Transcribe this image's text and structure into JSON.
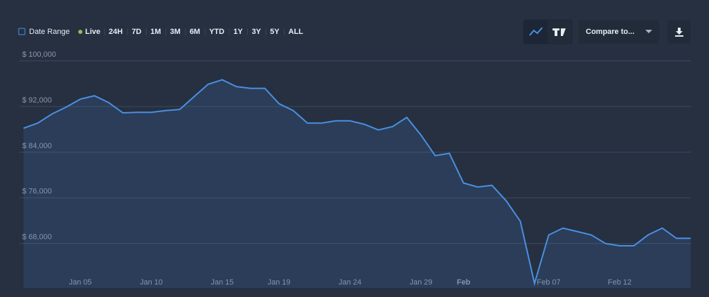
{
  "toolbar": {
    "date_range": "Date Range",
    "live": "Live",
    "ranges": [
      "24H",
      "7D",
      "1M",
      "3M",
      "6M",
      "YTD",
      "1Y",
      "3Y",
      "5Y",
      "ALL"
    ],
    "compare": "Compare to..."
  },
  "chart_data": {
    "type": "area",
    "categories": [
      null,
      null,
      null,
      null,
      "Jan 05",
      null,
      null,
      null,
      null,
      "Jan 10",
      null,
      null,
      null,
      null,
      "Jan 15",
      null,
      null,
      null,
      "Jan 19",
      null,
      null,
      null,
      null,
      "Jan 24",
      null,
      null,
      null,
      null,
      "Jan 29",
      null,
      null,
      "Feb",
      null,
      null,
      null,
      null,
      null,
      "Feb 07",
      null,
      null,
      null,
      null,
      "Feb 12",
      null,
      null,
      null,
      null,
      null
    ],
    "series": [
      {
        "color": "#4a90e2",
        "values": [
          88200,
          89100,
          90700,
          91900,
          93300,
          93900,
          92700,
          90900,
          91000,
          91000,
          91300,
          91500,
          93700,
          95900,
          96700,
          95500,
          95200,
          95200,
          92500,
          91300,
          89100,
          89100,
          89500,
          89500,
          88900,
          87900,
          88500,
          90100,
          87000,
          83400,
          83800,
          78600,
          77900,
          78200,
          75500,
          71900,
          61000,
          69500,
          70700,
          70100,
          69500,
          68000,
          67600,
          67600,
          69500,
          70700,
          68900,
          68900
        ]
      }
    ],
    "ylim": [
      60200,
      100000
    ],
    "yticks": [
      {
        "value": 68000,
        "label": "$ 68,000"
      },
      {
        "value": 76000,
        "label": "$ 76,000"
      },
      {
        "value": 84000,
        "label": "$ 84,000"
      },
      {
        "value": 92000,
        "label": "$ 92,000"
      },
      {
        "value": 100000,
        "label": "$ 100,000"
      }
    ],
    "grid": true
  }
}
